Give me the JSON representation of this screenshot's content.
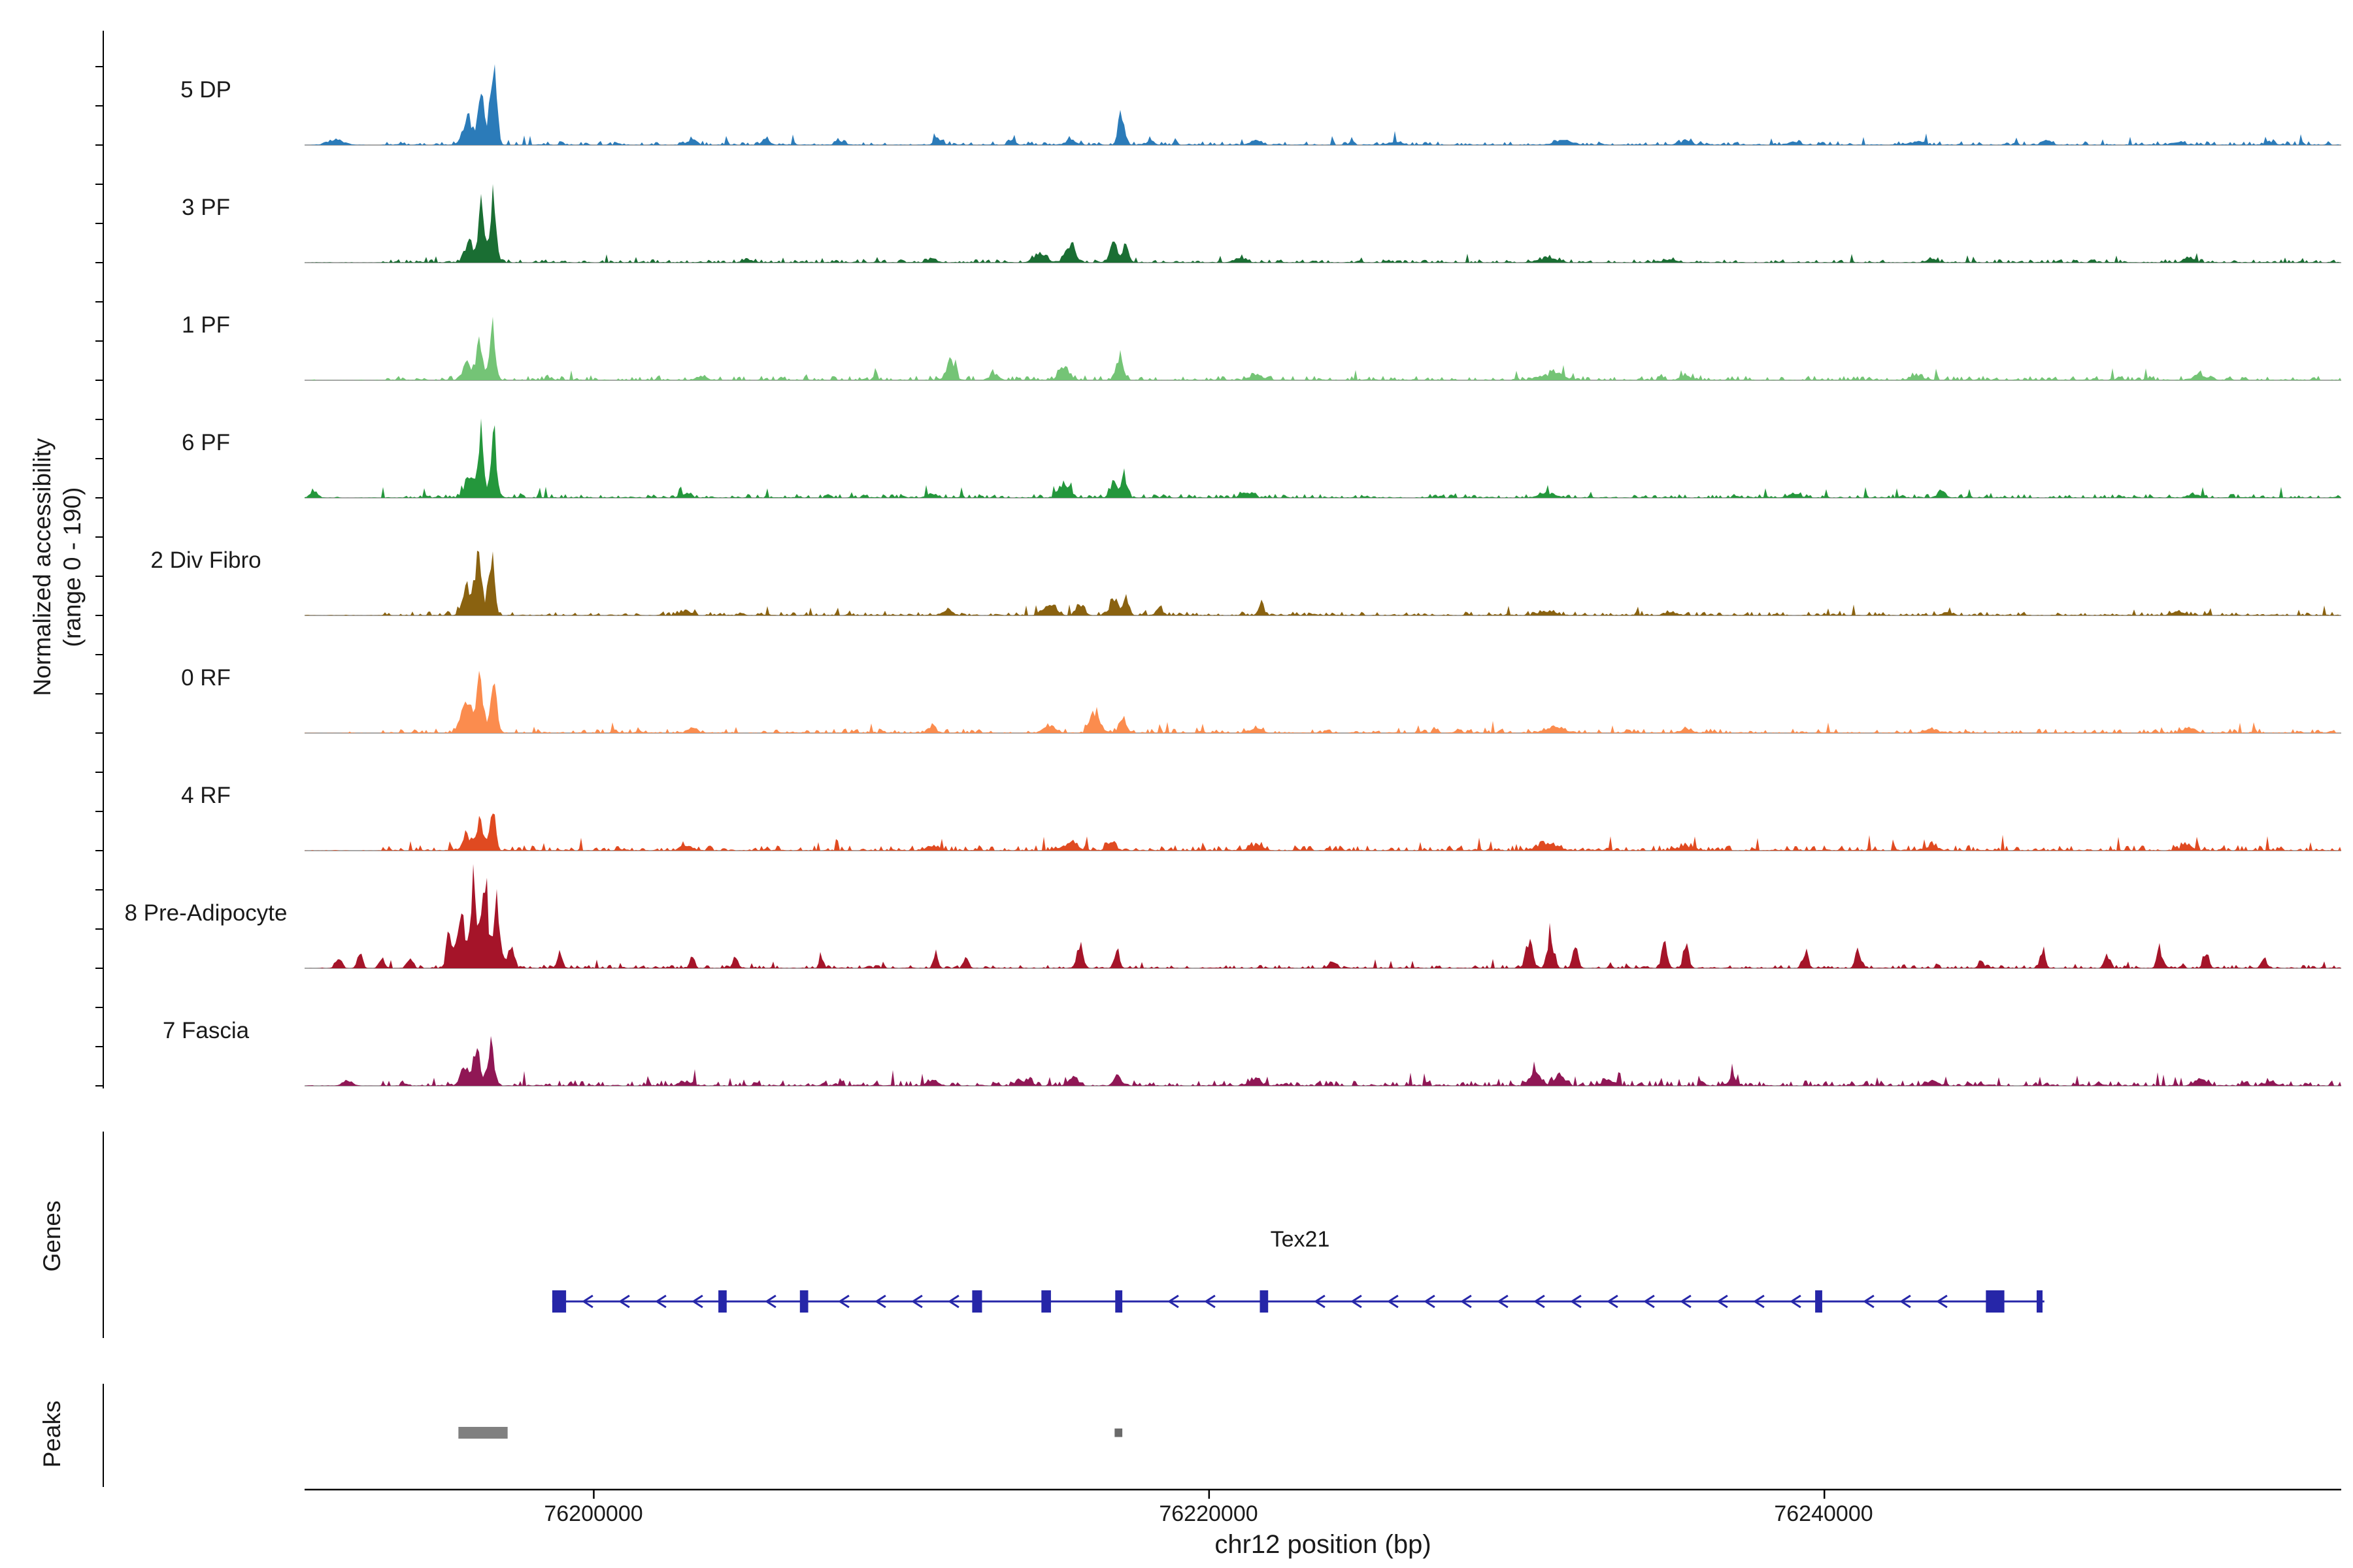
{
  "figure": {
    "y_axis_label_line1": "Normalized accessibility",
    "y_axis_label_line2": "(range 0 - 190)",
    "x_axis_title": "chr12 position (bp)"
  },
  "chart_data": {
    "type": "area",
    "title": "",
    "xlabel": "chr12 position (bp)",
    "ylabel": "Normalized accessibility (range 0 - 190)",
    "xlim": [
      76190600,
      76256800
    ],
    "ylim_per_track": [
      0,
      190
    ],
    "grid": false,
    "xticks": [
      76200000,
      76220000,
      76240000
    ],
    "xtick_labels": [
      "76200000",
      "76220000",
      "76240000"
    ],
    "tracks": [
      {
        "label": "5 DP",
        "color": "#2b7bb9",
        "noise": 7,
        "peaks": [
          [
            76191600,
            700,
            10
          ],
          [
            76195900,
            450,
            45
          ],
          [
            76196350,
            230,
            115
          ],
          [
            76196730,
            260,
            150
          ],
          [
            76203200,
            400,
            8
          ],
          [
            76205600,
            350,
            8
          ],
          [
            76208000,
            400,
            6
          ],
          [
            76211200,
            350,
            9
          ],
          [
            76213600,
            300,
            8
          ],
          [
            76215500,
            400,
            10
          ],
          [
            76217150,
            260,
            55
          ],
          [
            76218100,
            300,
            10
          ],
          [
            76221500,
            500,
            7
          ],
          [
            76226000,
            600,
            5
          ],
          [
            76231500,
            800,
            7
          ],
          [
            76235500,
            600,
            5
          ],
          [
            76239000,
            500,
            5
          ],
          [
            76243000,
            600,
            5
          ],
          [
            76247200,
            400,
            7
          ],
          [
            76251500,
            500,
            6
          ],
          [
            76254500,
            400,
            6
          ]
        ]
      },
      {
        "label": "3 PF",
        "color": "#1a6e33",
        "noise": 6,
        "peaks": [
          [
            76195950,
            400,
            38
          ],
          [
            76196350,
            240,
            95
          ],
          [
            76196720,
            250,
            108
          ],
          [
            76205000,
            400,
            6
          ],
          [
            76211000,
            400,
            7
          ],
          [
            76214500,
            500,
            18
          ],
          [
            76215500,
            450,
            28
          ],
          [
            76216900,
            300,
            35
          ],
          [
            76217300,
            240,
            32
          ],
          [
            76221000,
            500,
            8
          ],
          [
            76231000,
            700,
            9
          ],
          [
            76235000,
            500,
            6
          ],
          [
            76243500,
            400,
            6
          ],
          [
            76251800,
            400,
            8
          ]
        ]
      },
      {
        "label": "1 PF",
        "color": "#74c476",
        "noise": 8,
        "peaks": [
          [
            76195900,
            400,
            30
          ],
          [
            76196300,
            260,
            70
          ],
          [
            76196700,
            250,
            92
          ],
          [
            76203500,
            400,
            8
          ],
          [
            76211600,
            350,
            32
          ],
          [
            76213000,
            400,
            10
          ],
          [
            76215300,
            450,
            24
          ],
          [
            76217100,
            300,
            42
          ],
          [
            76221500,
            500,
            9
          ],
          [
            76231200,
            900,
            12
          ],
          [
            76235500,
            500,
            8
          ],
          [
            76243000,
            500,
            8
          ],
          [
            76252200,
            500,
            10
          ]
        ]
      },
      {
        "label": "6 PF",
        "color": "#24973c",
        "noise": 7,
        "peaks": [
          [
            76190900,
            300,
            14
          ],
          [
            76195950,
            400,
            40
          ],
          [
            76196320,
            240,
            100
          ],
          [
            76196740,
            250,
            118
          ],
          [
            76203000,
            400,
            7
          ],
          [
            76211000,
            400,
            8
          ],
          [
            76215300,
            450,
            26
          ],
          [
            76216900,
            280,
            30
          ],
          [
            76217250,
            240,
            40
          ],
          [
            76221200,
            500,
            8
          ],
          [
            76231000,
            700,
            8
          ],
          [
            76239000,
            500,
            6
          ],
          [
            76243800,
            350,
            12
          ],
          [
            76252000,
            450,
            7
          ]
        ]
      },
      {
        "label": "2 Div Fibro",
        "color": "#8a6210",
        "noise": 7,
        "peaks": [
          [
            76195900,
            400,
            45
          ],
          [
            76196250,
            260,
            112
          ],
          [
            76196680,
            250,
            100
          ],
          [
            76203000,
            400,
            8
          ],
          [
            76211500,
            400,
            9
          ],
          [
            76214800,
            500,
            22
          ],
          [
            76215800,
            350,
            18
          ],
          [
            76216900,
            320,
            30
          ],
          [
            76217300,
            240,
            34
          ],
          [
            76218400,
            300,
            12
          ],
          [
            76221700,
            260,
            16
          ],
          [
            76231000,
            700,
            8
          ],
          [
            76235000,
            500,
            6
          ],
          [
            76244000,
            400,
            6
          ],
          [
            76251500,
            500,
            7
          ]
        ]
      },
      {
        "label": "0 RF",
        "color": "#fb8c4e",
        "noise": 8,
        "peaks": [
          [
            76195850,
            450,
            55
          ],
          [
            76196300,
            280,
            92
          ],
          [
            76196750,
            280,
            80
          ],
          [
            76203200,
            400,
            8
          ],
          [
            76211000,
            400,
            9
          ],
          [
            76214800,
            500,
            14
          ],
          [
            76216300,
            400,
            38
          ],
          [
            76217200,
            300,
            28
          ],
          [
            76221500,
            500,
            8
          ],
          [
            76231200,
            800,
            10
          ],
          [
            76235500,
            500,
            7
          ],
          [
            76243500,
            500,
            7
          ],
          [
            76251800,
            500,
            8
          ]
        ]
      },
      {
        "label": "4 RF",
        "color": "#e04a21",
        "noise": 10,
        "peaks": [
          [
            76195900,
            400,
            25
          ],
          [
            76196300,
            250,
            52
          ],
          [
            76196700,
            250,
            68
          ],
          [
            76203000,
            500,
            8
          ],
          [
            76211000,
            500,
            8
          ],
          [
            76215500,
            600,
            14
          ],
          [
            76216800,
            350,
            16
          ],
          [
            76221500,
            600,
            8
          ],
          [
            76231000,
            800,
            12
          ],
          [
            76235500,
            600,
            8
          ],
          [
            76243500,
            500,
            7
          ],
          [
            76251800,
            500,
            9
          ]
        ]
      },
      {
        "label": "8 Pre-Adipocyte",
        "color": "#a51429",
        "noise": 6,
        "peaks": [
          [
            76191700,
            250,
            22
          ],
          [
            76192400,
            220,
            28
          ],
          [
            76193100,
            220,
            18
          ],
          [
            76194000,
            250,
            14
          ],
          [
            76195300,
            250,
            55
          ],
          [
            76195700,
            350,
            90
          ],
          [
            76196100,
            280,
            150
          ],
          [
            76196450,
            240,
            178
          ],
          [
            76196850,
            300,
            115
          ],
          [
            76197300,
            250,
            45
          ],
          [
            76198900,
            220,
            28
          ],
          [
            76203200,
            180,
            26
          ],
          [
            76204600,
            180,
            22
          ],
          [
            76207400,
            180,
            20
          ],
          [
            76211100,
            180,
            28
          ],
          [
            76212100,
            180,
            24
          ],
          [
            76215800,
            220,
            45
          ],
          [
            76217000,
            220,
            32
          ],
          [
            76224000,
            300,
            8
          ],
          [
            76230400,
            280,
            48
          ],
          [
            76231100,
            280,
            55
          ],
          [
            76231900,
            220,
            38
          ],
          [
            76234800,
            220,
            38
          ],
          [
            76235500,
            220,
            48
          ],
          [
            76239400,
            220,
            28
          ],
          [
            76241100,
            220,
            33
          ],
          [
            76245100,
            180,
            18
          ],
          [
            76247100,
            220,
            28
          ],
          [
            76249200,
            220,
            24
          ],
          [
            76250900,
            220,
            33
          ],
          [
            76252400,
            220,
            28
          ],
          [
            76254300,
            200,
            18
          ]
        ]
      },
      {
        "label": "7 Fascia",
        "color": "#901755",
        "noise": 10,
        "peaks": [
          [
            76192000,
            400,
            10
          ],
          [
            76195800,
            350,
            35
          ],
          [
            76196200,
            280,
            68
          ],
          [
            76196650,
            260,
            78
          ],
          [
            76203000,
            500,
            8
          ],
          [
            76211000,
            500,
            9
          ],
          [
            76214000,
            500,
            10
          ],
          [
            76215600,
            400,
            15
          ],
          [
            76217000,
            300,
            17
          ],
          [
            76221500,
            500,
            9
          ],
          [
            76230600,
            450,
            22
          ],
          [
            76231400,
            400,
            20
          ],
          [
            76233000,
            500,
            10
          ],
          [
            76237000,
            400,
            10
          ],
          [
            76243500,
            500,
            8
          ],
          [
            76252200,
            450,
            12
          ],
          [
            76254500,
            400,
            8
          ]
        ]
      }
    ],
    "gene_track": {
      "label": "Genes",
      "genes": [
        {
          "name": "Tex21",
          "strand": "-",
          "start": 76198650,
          "end": 76247150,
          "color": "#2626a8",
          "exons": [
            [
              76198650,
              76199100
            ],
            [
              76204050,
              76204320
            ],
            [
              76206700,
              76206970
            ],
            [
              76212300,
              76212620
            ],
            [
              76214550,
              76214860
            ],
            [
              76216950,
              76217180
            ],
            [
              76221650,
              76221920
            ],
            [
              76239700,
              76239930
            ],
            [
              76245250,
              76245850
            ],
            [
              76246900,
              76247080
            ]
          ]
        }
      ]
    },
    "peak_track": {
      "label": "Peaks",
      "peaks": [
        {
          "start": 76195600,
          "end": 76197200,
          "height": 18,
          "color": "#808080"
        },
        {
          "start": 76216930,
          "end": 76217180,
          "height": 13,
          "color": "#6a6a6a"
        }
      ]
    }
  }
}
